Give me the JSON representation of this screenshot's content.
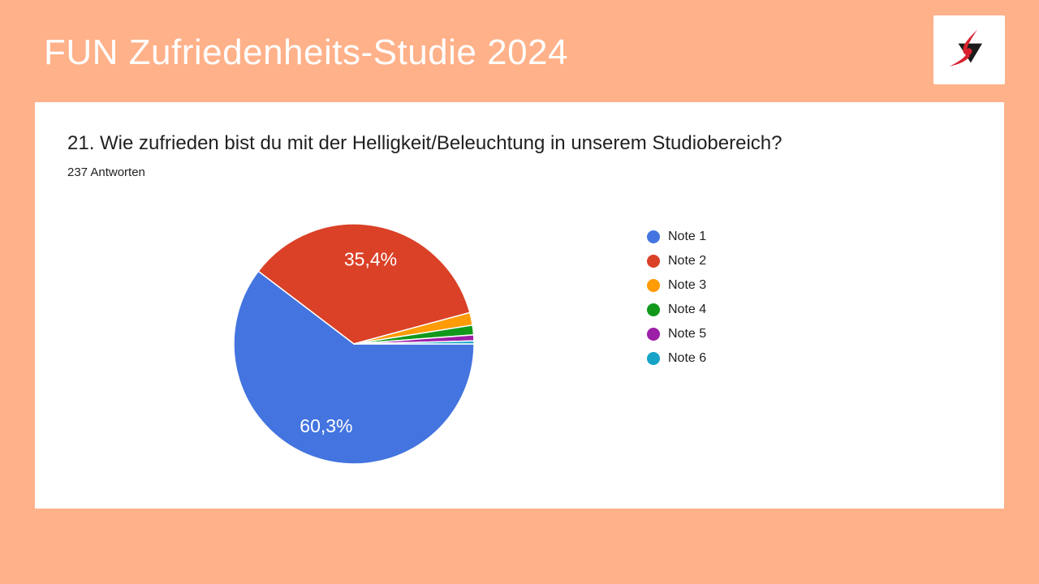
{
  "theme": {
    "background_color": "#FFB189",
    "card_color": "#FFFFFF",
    "header_text_color": "#FFFFFF",
    "body_text_color": "#212121"
  },
  "header": {
    "title": "FUN Zufriedenheits-Studie 2024",
    "logo": {
      "name": "swoosh-triangle-logo",
      "triangle_color": "#1B1B1B",
      "swoosh_color": "#D8212F",
      "box_color": "#FFFFFF"
    }
  },
  "question": {
    "title": "21. Wie zufrieden bist du mit der Helligkeit/Beleuchtung in unserem Studiobereich?",
    "answers_count_label": "237 Antworten"
  },
  "chart_data": {
    "type": "pie",
    "title": "21. Wie zufrieden bist du mit der Helligkeit/Beleuchtung in unserem Studiobereich?",
    "subtitle": "237 Antworten",
    "legend_position": "right",
    "start_angle_deg": 0,
    "direction": "clockwise",
    "slice_border_color": "#FFFFFF",
    "slices": [
      {
        "label": "Note 1",
        "value_pct": 60.3,
        "display": "60,3%",
        "color": "#4374DF"
      },
      {
        "label": "Note 2",
        "value_pct": 35.4,
        "display": "35,4%",
        "color": "#DA4127"
      },
      {
        "label": "Note 3",
        "value_pct": 1.7,
        "display": "",
        "color": "#FF9B05"
      },
      {
        "label": "Note 4",
        "value_pct": 1.3,
        "display": "",
        "color": "#12991C"
      },
      {
        "label": "Note 5",
        "value_pct": 0.8,
        "display": "",
        "color": "#9C1FA8"
      },
      {
        "label": "Note 6",
        "value_pct": 0.4,
        "display": "",
        "color": "#15A3C7"
      }
    ]
  }
}
